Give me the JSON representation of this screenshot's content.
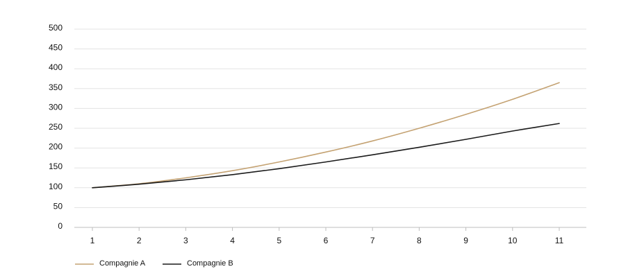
{
  "chart_data": {
    "type": "line",
    "title": "",
    "xlabel": "",
    "ylabel": "",
    "x": [
      1,
      2,
      3,
      4,
      5,
      6,
      7,
      8,
      9,
      10,
      11
    ],
    "xlim": [
      0.5,
      11.5
    ],
    "ylim": [
      0,
      500
    ],
    "yticks": [
      0,
      50,
      100,
      150,
      200,
      250,
      300,
      350,
      400,
      450,
      500
    ],
    "grid": "horizontal",
    "legend_position": "bottom-left",
    "series": [
      {
        "name": "Compagnie A",
        "color": "#c4a272",
        "values": [
          100,
          110,
          125,
          143,
          165,
          190,
          218,
          250,
          285,
          323,
          365
        ]
      },
      {
        "name": "Compagnie B",
        "color": "#1a1a1a",
        "values": [
          100,
          109,
          120,
          133,
          148,
          165,
          183,
          202,
          222,
          243,
          262
        ]
      }
    ]
  }
}
